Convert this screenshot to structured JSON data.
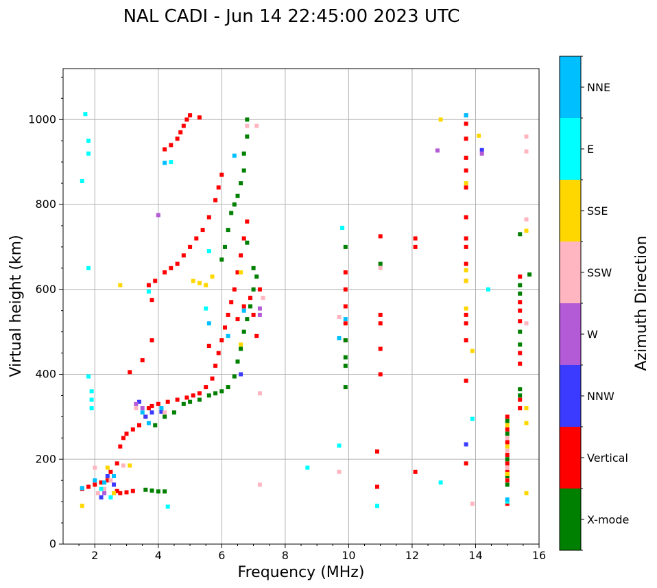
{
  "chart_data": {
    "type": "scatter",
    "title": "NAL CADI - Jun 14 22:45:00 2023 UTC",
    "xlabel": "Frequency (MHz)",
    "ylabel": "Virtual height (km)",
    "xlim": [
      1,
      16
    ],
    "ylim": [
      0,
      1120
    ],
    "xticks": [
      2,
      4,
      6,
      8,
      10,
      12,
      14,
      16
    ],
    "yticks": [
      0,
      200,
      400,
      600,
      800,
      1000
    ],
    "grid": true,
    "legend": {
      "title": "Azimuth Direction",
      "position": "right",
      "entries": [
        {
          "name": "X-mode",
          "color": "#008000"
        },
        {
          "name": "Vertical",
          "color": "#ff0000"
        },
        {
          "name": "NNW",
          "color": "#3b3bff"
        },
        {
          "name": "W",
          "color": "#b35ad6"
        },
        {
          "name": "SSW",
          "color": "#ffb6c1"
        },
        {
          "name": "SSE",
          "color": "#ffd700"
        },
        {
          "name": "E",
          "color": "#00ffff"
        },
        {
          "name": "NNE",
          "color": "#00bfff"
        }
      ]
    },
    "traces": [
      {
        "name": "Vertical",
        "points": [
          [
            1.6,
            130
          ],
          [
            1.8,
            135
          ],
          [
            2.0,
            140
          ],
          [
            2.2,
            145
          ],
          [
            2.4,
            150
          ],
          [
            2.6,
            140
          ],
          [
            2.7,
            125
          ],
          [
            2.8,
            120
          ],
          [
            3.0,
            122
          ],
          [
            3.2,
            125
          ],
          [
            2.5,
            170
          ],
          [
            2.7,
            190
          ],
          [
            2.8,
            230
          ],
          [
            2.9,
            250
          ],
          [
            3.0,
            260
          ],
          [
            3.2,
            270
          ],
          [
            3.4,
            280
          ],
          [
            3.6,
            300
          ],
          [
            3.7,
            320
          ],
          [
            3.8,
            325
          ],
          [
            4.0,
            330
          ],
          [
            4.3,
            335
          ],
          [
            4.6,
            340
          ],
          [
            4.9,
            345
          ],
          [
            5.1,
            350
          ],
          [
            5.3,
            355
          ],
          [
            5.5,
            370
          ],
          [
            5.7,
            390
          ],
          [
            5.8,
            420
          ],
          [
            5.9,
            450
          ],
          [
            6.0,
            480
          ],
          [
            6.1,
            510
          ],
          [
            6.2,
            540
          ],
          [
            6.3,
            570
          ],
          [
            6.4,
            600
          ],
          [
            6.5,
            640
          ],
          [
            6.6,
            680
          ],
          [
            6.7,
            720
          ],
          [
            6.8,
            760
          ],
          [
            3.7,
            610
          ],
          [
            3.9,
            620
          ],
          [
            4.2,
            640
          ],
          [
            4.4,
            650
          ],
          [
            4.6,
            660
          ],
          [
            4.8,
            680
          ],
          [
            5.0,
            700
          ],
          [
            5.2,
            720
          ],
          [
            5.4,
            740
          ],
          [
            5.6,
            770
          ],
          [
            5.8,
            810
          ],
          [
            5.9,
            840
          ],
          [
            6.0,
            870
          ],
          [
            4.2,
            930
          ],
          [
            4.4,
            940
          ],
          [
            4.6,
            955
          ],
          [
            4.7,
            970
          ],
          [
            4.8,
            985
          ],
          [
            4.9,
            1000
          ],
          [
            5.0,
            1010
          ],
          [
            5.3,
            1005
          ],
          [
            3.1,
            405
          ],
          [
            3.5,
            433
          ],
          [
            3.8,
            480
          ],
          [
            3.8,
            575
          ],
          [
            5.6,
            467
          ],
          [
            6.5,
            530
          ],
          [
            6.7,
            560
          ],
          [
            6.9,
            580
          ],
          [
            7.0,
            540
          ],
          [
            7.1,
            490
          ],
          [
            7.2,
            600
          ],
          [
            9.9,
            480
          ],
          [
            9.9,
            520
          ],
          [
            9.9,
            560
          ],
          [
            9.9,
            600
          ],
          [
            9.9,
            640
          ],
          [
            10.9,
            135
          ],
          [
            10.9,
            218
          ],
          [
            11.0,
            400
          ],
          [
            11.0,
            460
          ],
          [
            11.0,
            520
          ],
          [
            11.0,
            540
          ],
          [
            11.0,
            725
          ],
          [
            12.1,
            170
          ],
          [
            12.1,
            700
          ],
          [
            12.1,
            720
          ],
          [
            13.7,
            190
          ],
          [
            13.7,
            385
          ],
          [
            13.7,
            480
          ],
          [
            13.7,
            520
          ],
          [
            13.7,
            540
          ],
          [
            13.7,
            620
          ],
          [
            13.7,
            660
          ],
          [
            13.7,
            700
          ],
          [
            13.7,
            720
          ],
          [
            13.7,
            770
          ],
          [
            13.7,
            840
          ],
          [
            13.7,
            880
          ],
          [
            13.7,
            910
          ],
          [
            13.7,
            955
          ],
          [
            13.7,
            990
          ],
          [
            15.0,
            95
          ],
          [
            15.0,
            150
          ],
          [
            15.0,
            170
          ],
          [
            15.0,
            190
          ],
          [
            15.0,
            210
          ],
          [
            15.0,
            240
          ],
          [
            15.0,
            270
          ],
          [
            15.0,
            300
          ],
          [
            15.4,
            320
          ],
          [
            15.4,
            340
          ],
          [
            15.4,
            425
          ],
          [
            15.4,
            450
          ],
          [
            15.4,
            525
          ],
          [
            15.4,
            550
          ],
          [
            15.4,
            570
          ],
          [
            15.4,
            630
          ]
        ]
      },
      {
        "name": "X-mode",
        "points": [
          [
            3.6,
            128
          ],
          [
            3.8,
            126
          ],
          [
            4.0,
            124
          ],
          [
            4.2,
            124
          ],
          [
            3.9,
            280
          ],
          [
            4.2,
            300
          ],
          [
            4.5,
            310
          ],
          [
            4.8,
            330
          ],
          [
            5.0,
            335
          ],
          [
            5.3,
            340
          ],
          [
            5.6,
            350
          ],
          [
            5.8,
            355
          ],
          [
            6.0,
            360
          ],
          [
            6.2,
            370
          ],
          [
            6.4,
            395
          ],
          [
            6.5,
            430
          ],
          [
            6.6,
            460
          ],
          [
            6.7,
            500
          ],
          [
            6.8,
            530
          ],
          [
            6.9,
            560
          ],
          [
            7.0,
            600
          ],
          [
            7.1,
            630
          ],
          [
            6.0,
            670
          ],
          [
            6.1,
            700
          ],
          [
            6.2,
            740
          ],
          [
            6.3,
            780
          ],
          [
            6.4,
            800
          ],
          [
            6.5,
            820
          ],
          [
            6.6,
            850
          ],
          [
            6.7,
            880
          ],
          [
            6.7,
            920
          ],
          [
            6.8,
            960
          ],
          [
            6.8,
            1000
          ],
          [
            6.8,
            710
          ],
          [
            7.0,
            650
          ],
          [
            9.9,
            370
          ],
          [
            9.9,
            420
          ],
          [
            9.9,
            440
          ],
          [
            9.9,
            480
          ],
          [
            9.9,
            700
          ],
          [
            11.0,
            660
          ],
          [
            15.4,
            350
          ],
          [
            15.4,
            365
          ],
          [
            15.4,
            470
          ],
          [
            15.4,
            500
          ],
          [
            15.4,
            590
          ],
          [
            15.4,
            610
          ],
          [
            15.4,
            730
          ],
          [
            15.7,
            635
          ],
          [
            15.0,
            140
          ],
          [
            15.0,
            160
          ],
          [
            15.0,
            200
          ],
          [
            15.0,
            260
          ],
          [
            15.0,
            290
          ]
        ]
      },
      {
        "name": "NNW",
        "points": [
          [
            2.2,
            110
          ],
          [
            2.4,
            160
          ],
          [
            2.6,
            140
          ],
          [
            3.4,
            335
          ],
          [
            3.6,
            300
          ],
          [
            3.8,
            310
          ],
          [
            4.1,
            312
          ],
          [
            6.6,
            400
          ],
          [
            13.7,
            235
          ],
          [
            13.7,
            1010
          ],
          [
            14.2,
            928
          ]
        ]
      },
      {
        "name": "W",
        "points": [
          [
            2.3,
            120
          ],
          [
            3.3,
            330
          ],
          [
            3.5,
            320
          ],
          [
            4.0,
            775
          ],
          [
            7.2,
            540
          ],
          [
            7.2,
            555
          ],
          [
            12.8,
            927
          ],
          [
            14.2,
            920
          ]
        ]
      },
      {
        "name": "SSW",
        "points": [
          [
            2.0,
            180
          ],
          [
            2.1,
            120
          ],
          [
            2.3,
            130
          ],
          [
            2.5,
            150
          ],
          [
            2.9,
            185
          ],
          [
            3.3,
            320
          ],
          [
            4.2,
            310
          ],
          [
            6.8,
            985
          ],
          [
            7.1,
            985
          ],
          [
            7.2,
            140
          ],
          [
            7.2,
            355
          ],
          [
            7.3,
            580
          ],
          [
            9.7,
            170
          ],
          [
            9.7,
            535
          ],
          [
            11.0,
            650
          ],
          [
            13.9,
            95
          ],
          [
            15.6,
            520
          ],
          [
            15.6,
            765
          ],
          [
            15.6,
            925
          ],
          [
            15.6,
            960
          ],
          [
            15.0,
            180
          ],
          [
            15.0,
            220
          ],
          [
            15.0,
            250
          ]
        ]
      },
      {
        "name": "SSE",
        "points": [
          [
            1.6,
            90
          ],
          [
            2.4,
            180
          ],
          [
            2.6,
            120
          ],
          [
            2.8,
            610
          ],
          [
            3.1,
            185
          ],
          [
            5.1,
            620
          ],
          [
            5.3,
            615
          ],
          [
            5.5,
            610
          ],
          [
            5.7,
            630
          ],
          [
            6.6,
            470
          ],
          [
            6.6,
            640
          ],
          [
            12.9,
            1000
          ],
          [
            13.7,
            555
          ],
          [
            13.7,
            645
          ],
          [
            13.7,
            620
          ],
          [
            13.9,
            455
          ],
          [
            14.1,
            962
          ],
          [
            13.7,
            850
          ],
          [
            15.6,
            320
          ],
          [
            15.6,
            285
          ],
          [
            15.6,
            120
          ],
          [
            15.6,
            738
          ],
          [
            15.0,
            165
          ],
          [
            15.0,
            230
          ],
          [
            15.0,
            280
          ]
        ]
      },
      {
        "name": "E",
        "points": [
          [
            1.6,
            855
          ],
          [
            1.7,
            1013
          ],
          [
            1.8,
            950
          ],
          [
            1.8,
            920
          ],
          [
            1.8,
            650
          ],
          [
            1.8,
            395
          ],
          [
            1.9,
            360
          ],
          [
            1.9,
            340
          ],
          [
            1.9,
            320
          ],
          [
            2.2,
            130
          ],
          [
            2.5,
            110
          ],
          [
            3.7,
            595
          ],
          [
            4.3,
            88
          ],
          [
            4.4,
            900
          ],
          [
            5.6,
            690
          ],
          [
            5.5,
            555
          ],
          [
            8.7,
            180
          ],
          [
            9.7,
            232
          ],
          [
            9.8,
            745
          ],
          [
            10.9,
            90
          ],
          [
            12.9,
            145
          ],
          [
            13.9,
            295
          ],
          [
            14.4,
            600
          ],
          [
            15.0,
            100
          ]
        ]
      },
      {
        "name": "NNE",
        "points": [
          [
            1.6,
            132
          ],
          [
            2.0,
            150
          ],
          [
            2.3,
            145
          ],
          [
            2.6,
            160
          ],
          [
            3.5,
            310
          ],
          [
            3.7,
            285
          ],
          [
            4.1,
            320
          ],
          [
            4.2,
            898
          ],
          [
            5.6,
            520
          ],
          [
            6.2,
            490
          ],
          [
            6.4,
            915
          ],
          [
            6.7,
            550
          ],
          [
            9.7,
            485
          ],
          [
            9.9,
            530
          ],
          [
            13.7,
            1010
          ],
          [
            15.0,
            105
          ]
        ]
      }
    ]
  }
}
